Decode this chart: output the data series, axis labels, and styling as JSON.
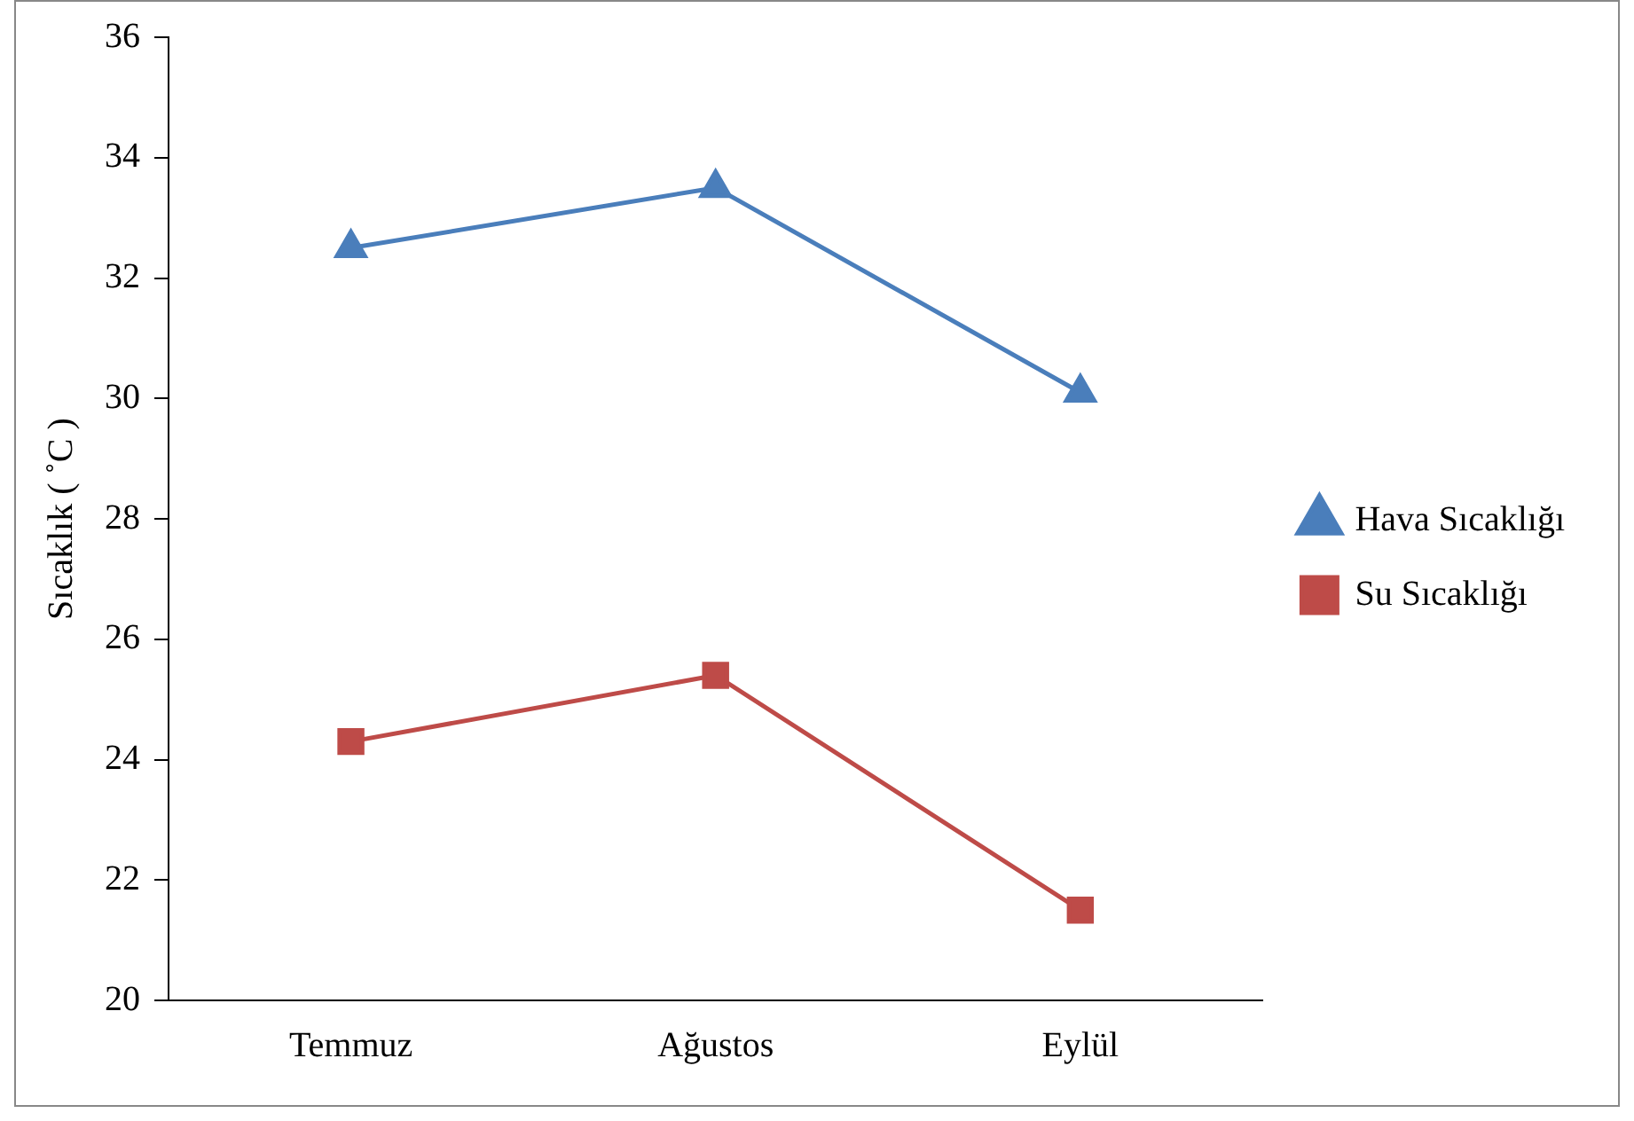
{
  "chart_data": {
    "type": "line",
    "ylabel": "Sıcaklık ( ˚C )",
    "categories": [
      "Temmuz",
      "Ağustos",
      "Eylül"
    ],
    "series": [
      {
        "name": "Hava Sıcaklığı",
        "color": "#4a7ebb",
        "marker": "triangle",
        "values": [
          32.5,
          33.5,
          30.1
        ]
      },
      {
        "name": "Su Sıcaklığı",
        "color": "#be4b48",
        "marker": "square",
        "values": [
          24.3,
          25.4,
          21.5
        ]
      }
    ],
    "ylim": [
      20,
      36
    ],
    "yticks": [
      20,
      22,
      24,
      26,
      28,
      30,
      32,
      34,
      36
    ],
    "grid": false,
    "legend": "right",
    "line_style": "solid"
  }
}
